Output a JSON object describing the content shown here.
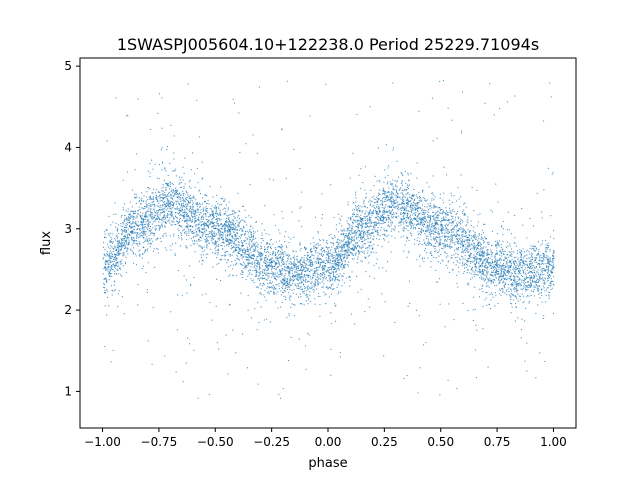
{
  "chart_data": {
    "type": "scatter",
    "title": "1SWASPJ005604.10+122238.0 Period 25229.71094s",
    "xlabel": "phase",
    "ylabel": "flux",
    "xlim": [
      -1.1,
      1.1
    ],
    "ylim": [
      0.55,
      5.1
    ],
    "x_ticks": [
      -1.0,
      -0.75,
      -0.5,
      -0.25,
      0.0,
      0.25,
      0.5,
      0.75,
      1.0
    ],
    "x_tick_labels": [
      "−1.00",
      "−0.75",
      "−0.50",
      "−0.25",
      "0.00",
      "0.25",
      "0.50",
      "0.75",
      "1.00"
    ],
    "y_ticks": [
      1,
      2,
      3,
      4,
      5
    ],
    "y_tick_labels": [
      "1",
      "2",
      "3",
      "4",
      "5"
    ],
    "grid": false,
    "legend": "none",
    "marker_color": "#1f77b4",
    "trend": {
      "description_points_x": [
        -1.0,
        -0.85,
        -0.7,
        -0.5,
        -0.25,
        -0.15,
        0.0,
        0.15,
        0.3,
        0.5,
        0.75,
        0.85,
        1.0
      ],
      "description_points_y": [
        2.55,
        3.05,
        3.3,
        3.0,
        2.55,
        2.45,
        2.55,
        3.0,
        3.3,
        3.0,
        2.55,
        2.45,
        2.55
      ]
    },
    "core_scatter": 0.18,
    "outlier_range": [
      0.8,
      4.85
    ]
  }
}
